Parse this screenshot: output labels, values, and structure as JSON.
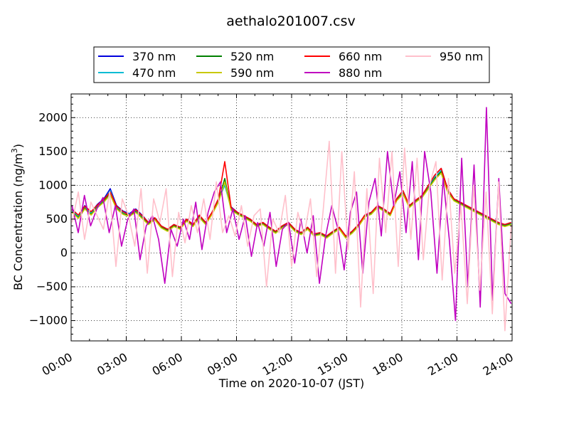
{
  "chart_data": {
    "type": "line",
    "title": "aethalo201007.csv",
    "xlabel": "Time on 2020-10-07 (JST)",
    "ylabel": "BC Concentration (ng/m³)",
    "ylabel_parts": {
      "main": "BC Concentration (ng/m",
      "sup": "3",
      "end": ")"
    },
    "xlim": [
      "00:00",
      "24:00"
    ],
    "ylim": [
      -1300,
      2350
    ],
    "x_ticks": [
      "00:00",
      "03:00",
      "06:00",
      "09:00",
      "12:00",
      "15:00",
      "18:00",
      "21:00",
      "24:00"
    ],
    "y_ticks": [
      2000,
      1500,
      1000,
      500,
      0,
      -500,
      -1000
    ],
    "y_tick_labels": [
      "2000",
      "1500",
      "1000",
      "500",
      "0",
      "−500",
      "−1000"
    ],
    "grid": true,
    "legend_position": "top-center, above plot",
    "sampling_interval_minutes": 5,
    "series": [
      {
        "name": "370 nm",
        "color": "#0000dd",
        "values": [
          650,
          550,
          700,
          600,
          720,
          800,
          950,
          700,
          620,
          580,
          650,
          560,
          450,
          520,
          400,
          350,
          420,
          380,
          500,
          420,
          550,
          450,
          600,
          800,
          1050,
          680,
          600,
          550,
          500,
          420,
          450,
          380,
          320,
          400,
          450,
          350,
          300,
          380,
          280,
          300,
          250,
          320,
          380,
          250,
          320,
          420,
          560,
          600,
          700,
          650,
          580,
          800,
          920,
          700,
          780,
          850,
          1000,
          1150,
          1250,
          950,
          800,
          750,
          700,
          650,
          600,
          550,
          500,
          450,
          420,
          450
        ]
      },
      {
        "name": "470 nm",
        "color": "#00bcd4",
        "values": [
          630,
          540,
          680,
          590,
          700,
          780,
          920,
          680,
          600,
          570,
          630,
          540,
          440,
          510,
          390,
          340,
          410,
          370,
          490,
          410,
          540,
          440,
          590,
          780,
          1000,
          660,
          590,
          540,
          490,
          410,
          440,
          370,
          310,
          390,
          440,
          340,
          290,
          370,
          270,
          290,
          240,
          310,
          370,
          240,
          310,
          410,
          550,
          590,
          690,
          640,
          570,
          790,
          900,
          690,
          770,
          840,
          980,
          1120,
          1220,
          930,
          790,
          740,
          690,
          640,
          590,
          540,
          490,
          440,
          410,
          440
        ]
      },
      {
        "name": "520 nm",
        "color": "#008000",
        "values": [
          610,
          520,
          660,
          570,
          680,
          760,
          880,
          660,
          580,
          550,
          610,
          520,
          430,
          500,
          380,
          330,
          400,
          360,
          480,
          400,
          530,
          430,
          580,
          760,
          1100,
          640,
          580,
          530,
          480,
          400,
          430,
          360,
          300,
          380,
          430,
          330,
          280,
          360,
          260,
          280,
          230,
          300,
          360,
          230,
          300,
          400,
          540,
          580,
          680,
          630,
          560,
          780,
          880,
          680,
          760,
          830,
          960,
          1100,
          1200,
          910,
          780,
          730,
          680,
          630,
          580,
          530,
          480,
          430,
          400,
          430
        ]
      },
      {
        "name": "590 nm",
        "color": "#c8c800",
        "values": [
          600,
          510,
          650,
          560,
          670,
          750,
          860,
          650,
          570,
          540,
          600,
          510,
          420,
          490,
          370,
          320,
          390,
          350,
          470,
          390,
          520,
          420,
          570,
          750,
          1050,
          630,
          570,
          520,
          470,
          390,
          420,
          350,
          290,
          370,
          420,
          320,
          270,
          350,
          250,
          270,
          220,
          290,
          350,
          220,
          290,
          390,
          530,
          570,
          670,
          620,
          550,
          770,
          870,
          670,
          750,
          820,
          950,
          1080,
          1180,
          900,
          770,
          720,
          670,
          620,
          570,
          520,
          470,
          420,
          390,
          420
        ]
      },
      {
        "name": "660 nm",
        "color": "#ff0000",
        "values": [
          640,
          560,
          690,
          610,
          710,
          790,
          900,
          690,
          610,
          560,
          640,
          550,
          450,
          520,
          400,
          350,
          420,
          380,
          500,
          420,
          560,
          450,
          600,
          800,
          1350,
          670,
          600,
          550,
          500,
          420,
          450,
          380,
          320,
          400,
          450,
          350,
          300,
          380,
          280,
          300,
          250,
          320,
          380,
          250,
          320,
          420,
          560,
          600,
          700,
          650,
          580,
          800,
          920,
          700,
          780,
          850,
          1000,
          1150,
          1250,
          950,
          800,
          750,
          700,
          650,
          600,
          550,
          500,
          450,
          420,
          450
        ]
      },
      {
        "name": "880 nm",
        "color": "#c000c0",
        "values": [
          700,
          300,
          850,
          400,
          650,
          820,
          300,
          700,
          100,
          500,
          650,
          -100,
          400,
          550,
          200,
          -450,
          350,
          100,
          500,
          200,
          750,
          50,
          600,
          900,
          1050,
          300,
          650,
          200,
          550,
          -50,
          450,
          100,
          600,
          -200,
          350,
          450,
          -150,
          500,
          0,
          550,
          -450,
          250,
          700,
          350,
          -250,
          600,
          900,
          -300,
          750,
          1100,
          250,
          1500,
          700,
          1200,
          300,
          1350,
          -100,
          1500,
          900,
          -300,
          1100,
          200,
          -1000,
          1400,
          -500,
          1300,
          -800,
          2150,
          -700,
          1100,
          -600,
          -750
        ]
      },
      {
        "name": "950 nm",
        "color": "#ffc0cb",
        "values": [
          450,
          900,
          200,
          750,
          550,
          350,
          900,
          -200,
          800,
          550,
          100,
          950,
          -300,
          800,
          450,
          950,
          -350,
          600,
          150,
          700,
          300,
          800,
          200,
          1050,
          300,
          550,
          250,
          700,
          100,
          550,
          650,
          -500,
          500,
          300,
          850,
          -200,
          600,
          250,
          800,
          -350,
          600,
          1650,
          -300,
          1500,
          50,
          1200,
          -800,
          950,
          -600,
          1400,
          300,
          1500,
          -200,
          1550,
          200,
          1400,
          -100,
          1000,
          1350,
          -400,
          1100,
          -300,
          700,
          -750,
          1000,
          -550,
          900,
          -900,
          1050,
          -1150,
          400
        ]
      }
    ]
  }
}
